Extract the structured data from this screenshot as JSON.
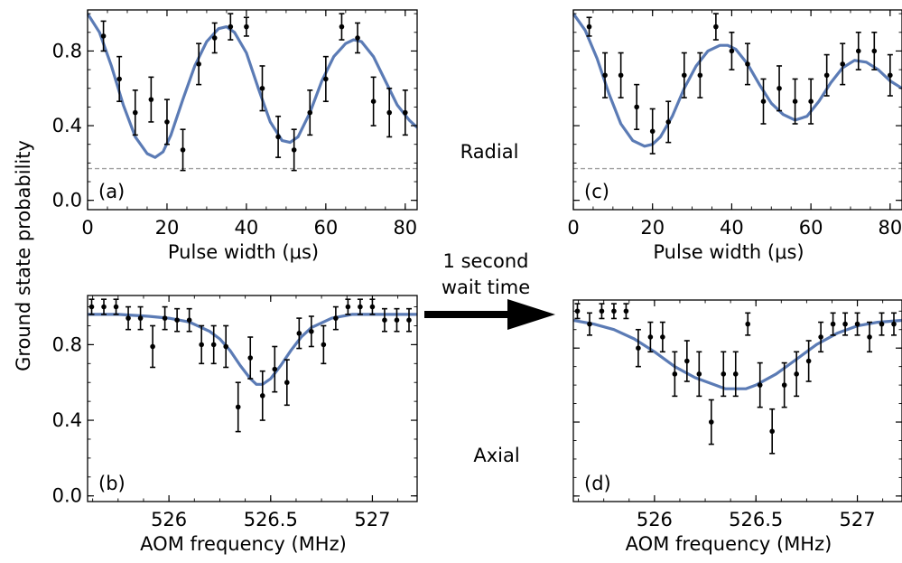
{
  "figure": {
    "shared_ylabel": "Ground state probability",
    "radial_label": "Radial",
    "axial_label": "Axial",
    "arrow_text": [
      "1 second",
      "wait time"
    ],
    "fit_color": "#5b7bb5",
    "data_color": "#000000",
    "baseline_color": "#a0a0a0"
  },
  "chart_data": [
    {
      "id": "a",
      "type": "scatter",
      "panel_label": "(a)",
      "xlabel": "Pulse width (μs)",
      "xlim": [
        0,
        83
      ],
      "ylim": [
        -0.05,
        1.02
      ],
      "xticks": [
        0,
        20,
        40,
        60,
        80
      ],
      "yticks": [
        0.0,
        0.4,
        0.8
      ],
      "xtick_labels": [
        "0",
        "20",
        "40",
        "60",
        "80"
      ],
      "ytick_labels": [
        "0.0",
        "0.4",
        "0.8"
      ],
      "baseline": 0.17,
      "points": [
        {
          "x": 4,
          "y": 0.88,
          "err": 0.08
        },
        {
          "x": 8,
          "y": 0.65,
          "err": 0.12
        },
        {
          "x": 12,
          "y": 0.47,
          "err": 0.12
        },
        {
          "x": 16,
          "y": 0.54,
          "err": 0.12
        },
        {
          "x": 20,
          "y": 0.42,
          "err": 0.12
        },
        {
          "x": 24,
          "y": 0.27,
          "err": 0.11
        },
        {
          "x": 28,
          "y": 0.73,
          "err": 0.11
        },
        {
          "x": 32,
          "y": 0.87,
          "err": 0.08
        },
        {
          "x": 36,
          "y": 0.93,
          "err": 0.07
        },
        {
          "x": 40,
          "y": 0.93,
          "err": 0.05
        },
        {
          "x": 44,
          "y": 0.6,
          "err": 0.12
        },
        {
          "x": 48,
          "y": 0.34,
          "err": 0.11
        },
        {
          "x": 52,
          "y": 0.27,
          "err": 0.11
        },
        {
          "x": 56,
          "y": 0.47,
          "err": 0.12
        },
        {
          "x": 60,
          "y": 0.65,
          "err": 0.12
        },
        {
          "x": 64,
          "y": 0.93,
          "err": 0.07
        },
        {
          "x": 68,
          "y": 0.87,
          "err": 0.08
        },
        {
          "x": 72,
          "y": 0.53,
          "err": 0.13
        },
        {
          "x": 76,
          "y": 0.47,
          "err": 0.13
        },
        {
          "x": 80,
          "y": 0.47,
          "err": 0.12
        }
      ],
      "fit": {
        "x": [
          0,
          3,
          6,
          9,
          12,
          15,
          17,
          19,
          21,
          24,
          27,
          30,
          33,
          35,
          37,
          40,
          43,
          46,
          49,
          51,
          53,
          56,
          59,
          62,
          65,
          67,
          69,
          72,
          75,
          78,
          81,
          83
        ],
        "y": [
          1.0,
          0.9,
          0.72,
          0.51,
          0.34,
          0.25,
          0.23,
          0.26,
          0.35,
          0.54,
          0.72,
          0.85,
          0.92,
          0.93,
          0.9,
          0.79,
          0.6,
          0.42,
          0.32,
          0.31,
          0.34,
          0.47,
          0.64,
          0.77,
          0.84,
          0.86,
          0.85,
          0.77,
          0.64,
          0.51,
          0.43,
          0.39
        ]
      }
    },
    {
      "id": "c",
      "type": "scatter",
      "panel_label": "(c)",
      "xlabel": "Pulse width (μs)",
      "xlim": [
        0,
        83
      ],
      "ylim": [
        -0.05,
        1.02
      ],
      "xticks": [
        0,
        20,
        40,
        60,
        80
      ],
      "yticks": [
        0.0,
        0.4,
        0.8
      ],
      "xtick_labels": [
        "0",
        "20",
        "40",
        "60",
        "80"
      ],
      "ytick_labels": [],
      "baseline": 0.17,
      "points": [
        {
          "x": 4,
          "y": 0.93,
          "err": 0.05
        },
        {
          "x": 8,
          "y": 0.67,
          "err": 0.12
        },
        {
          "x": 12,
          "y": 0.67,
          "err": 0.12
        },
        {
          "x": 16,
          "y": 0.5,
          "err": 0.12
        },
        {
          "x": 20,
          "y": 0.37,
          "err": 0.12
        },
        {
          "x": 24,
          "y": 0.42,
          "err": 0.11
        },
        {
          "x": 28,
          "y": 0.67,
          "err": 0.12
        },
        {
          "x": 32,
          "y": 0.67,
          "err": 0.12
        },
        {
          "x": 36,
          "y": 0.93,
          "err": 0.07
        },
        {
          "x": 40,
          "y": 0.8,
          "err": 0.1
        },
        {
          "x": 44,
          "y": 0.73,
          "err": 0.11
        },
        {
          "x": 48,
          "y": 0.53,
          "err": 0.12
        },
        {
          "x": 52,
          "y": 0.6,
          "err": 0.12
        },
        {
          "x": 56,
          "y": 0.53,
          "err": 0.12
        },
        {
          "x": 60,
          "y": 0.53,
          "err": 0.12
        },
        {
          "x": 64,
          "y": 0.67,
          "err": 0.11
        },
        {
          "x": 68,
          "y": 0.73,
          "err": 0.11
        },
        {
          "x": 72,
          "y": 0.8,
          "err": 0.1
        },
        {
          "x": 76,
          "y": 0.8,
          "err": 0.1
        },
        {
          "x": 80,
          "y": 0.67,
          "err": 0.11
        }
      ],
      "fit": {
        "x": [
          0,
          3,
          6,
          9,
          12,
          15,
          18,
          20,
          22,
          25,
          28,
          31,
          34,
          37,
          39,
          41,
          44,
          47,
          50,
          53,
          56,
          59,
          62,
          65,
          68,
          71,
          74,
          77,
          80,
          83
        ],
        "y": [
          1.0,
          0.91,
          0.76,
          0.57,
          0.41,
          0.32,
          0.29,
          0.3,
          0.34,
          0.45,
          0.6,
          0.72,
          0.8,
          0.83,
          0.83,
          0.81,
          0.73,
          0.62,
          0.52,
          0.46,
          0.43,
          0.45,
          0.53,
          0.63,
          0.71,
          0.75,
          0.74,
          0.7,
          0.64,
          0.6
        ]
      }
    },
    {
      "id": "b",
      "type": "scatter",
      "panel_label": "(b)",
      "xlabel": "AOM frequency (MHz)",
      "xlim": [
        525.6,
        527.22
      ],
      "ylim": [
        -0.03,
        1.06
      ],
      "xticks": [
        526,
        526.5,
        527
      ],
      "yticks": [
        0.0,
        0.4,
        0.8
      ],
      "xtick_labels": [
        "526",
        "526.5",
        "527"
      ],
      "ytick_labels": [
        "0.0",
        "0.4",
        "0.8"
      ],
      "points": [
        {
          "x": 525.62,
          "y": 1.0,
          "err": 0.04
        },
        {
          "x": 525.68,
          "y": 1.0,
          "err": 0.04
        },
        {
          "x": 525.74,
          "y": 1.0,
          "err": 0.04
        },
        {
          "x": 525.8,
          "y": 0.94,
          "err": 0.06
        },
        {
          "x": 525.86,
          "y": 0.94,
          "err": 0.06
        },
        {
          "x": 525.92,
          "y": 0.79,
          "err": 0.11
        },
        {
          "x": 525.98,
          "y": 0.94,
          "err": 0.06
        },
        {
          "x": 526.04,
          "y": 0.93,
          "err": 0.06
        },
        {
          "x": 526.1,
          "y": 0.93,
          "err": 0.06
        },
        {
          "x": 526.16,
          "y": 0.8,
          "err": 0.1
        },
        {
          "x": 526.22,
          "y": 0.8,
          "err": 0.1
        },
        {
          "x": 526.28,
          "y": 0.79,
          "err": 0.11
        },
        {
          "x": 526.34,
          "y": 0.47,
          "err": 0.13
        },
        {
          "x": 526.4,
          "y": 0.73,
          "err": 0.11
        },
        {
          "x": 526.46,
          "y": 0.53,
          "err": 0.13
        },
        {
          "x": 526.52,
          "y": 0.67,
          "err": 0.12
        },
        {
          "x": 526.58,
          "y": 0.6,
          "err": 0.12
        },
        {
          "x": 526.64,
          "y": 0.86,
          "err": 0.08
        },
        {
          "x": 526.7,
          "y": 0.87,
          "err": 0.08
        },
        {
          "x": 526.76,
          "y": 0.8,
          "err": 0.1
        },
        {
          "x": 526.82,
          "y": 0.94,
          "err": 0.06
        },
        {
          "x": 526.88,
          "y": 1.0,
          "err": 0.04
        },
        {
          "x": 526.94,
          "y": 1.0,
          "err": 0.04
        },
        {
          "x": 527.0,
          "y": 1.0,
          "err": 0.04
        },
        {
          "x": 527.06,
          "y": 0.93,
          "err": 0.06
        },
        {
          "x": 527.12,
          "y": 0.93,
          "err": 0.06
        },
        {
          "x": 527.18,
          "y": 0.93,
          "err": 0.06
        }
      ],
      "fit": {
        "x": [
          525.6,
          525.75,
          525.9,
          526.0,
          526.1,
          526.2,
          526.25,
          526.3,
          526.35,
          526.4,
          526.43,
          526.46,
          526.5,
          526.55,
          526.6,
          526.65,
          526.7,
          526.8,
          526.9,
          527.0,
          527.1,
          527.22
        ],
        "y": [
          0.96,
          0.96,
          0.95,
          0.94,
          0.92,
          0.87,
          0.83,
          0.77,
          0.69,
          0.62,
          0.59,
          0.59,
          0.62,
          0.69,
          0.77,
          0.84,
          0.89,
          0.94,
          0.96,
          0.96,
          0.96,
          0.96
        ]
      }
    },
    {
      "id": "d",
      "type": "scatter",
      "panel_label": "(d)",
      "xlabel": "AOM frequency (MHz)",
      "xlim": [
        525.6,
        527.22
      ],
      "ylim": [
        -0.03,
        1.06
      ],
      "xticks": [
        526,
        526.5,
        527
      ],
      "yticks": [
        0.0,
        0.4,
        0.8
      ],
      "xtick_labels": [
        "526",
        "526.5",
        "527"
      ],
      "ytick_labels": [],
      "points": [
        {
          "x": 525.62,
          "y": 1.0,
          "err": 0.04
        },
        {
          "x": 525.68,
          "y": 0.93,
          "err": 0.06
        },
        {
          "x": 525.74,
          "y": 1.0,
          "err": 0.04
        },
        {
          "x": 525.8,
          "y": 1.0,
          "err": 0.04
        },
        {
          "x": 525.86,
          "y": 1.0,
          "err": 0.04
        },
        {
          "x": 525.92,
          "y": 0.8,
          "err": 0.1
        },
        {
          "x": 525.98,
          "y": 0.86,
          "err": 0.08
        },
        {
          "x": 526.04,
          "y": 0.86,
          "err": 0.08
        },
        {
          "x": 526.1,
          "y": 0.66,
          "err": 0.12
        },
        {
          "x": 526.16,
          "y": 0.73,
          "err": 0.11
        },
        {
          "x": 526.22,
          "y": 0.66,
          "err": 0.12
        },
        {
          "x": 526.28,
          "y": 0.4,
          "err": 0.12
        },
        {
          "x": 526.34,
          "y": 0.66,
          "err": 0.12
        },
        {
          "x": 526.4,
          "y": 0.66,
          "err": 0.12
        },
        {
          "x": 526.46,
          "y": 0.93,
          "err": 0.06
        },
        {
          "x": 526.52,
          "y": 0.6,
          "err": 0.12
        },
        {
          "x": 526.58,
          "y": 0.35,
          "err": 0.12
        },
        {
          "x": 526.64,
          "y": 0.6,
          "err": 0.12
        },
        {
          "x": 526.7,
          "y": 0.66,
          "err": 0.12
        },
        {
          "x": 526.76,
          "y": 0.73,
          "err": 0.11
        },
        {
          "x": 526.82,
          "y": 0.86,
          "err": 0.08
        },
        {
          "x": 526.88,
          "y": 0.93,
          "err": 0.06
        },
        {
          "x": 526.94,
          "y": 0.93,
          "err": 0.06
        },
        {
          "x": 527.0,
          "y": 0.93,
          "err": 0.06
        },
        {
          "x": 527.06,
          "y": 0.86,
          "err": 0.08
        },
        {
          "x": 527.12,
          "y": 0.93,
          "err": 0.06
        },
        {
          "x": 527.18,
          "y": 0.93,
          "err": 0.06
        }
      ],
      "fit": {
        "x": [
          525.6,
          525.7,
          525.8,
          525.9,
          526.0,
          526.1,
          526.2,
          526.3,
          526.35,
          526.4,
          526.45,
          526.5,
          526.6,
          526.7,
          526.8,
          526.9,
          527.0,
          527.1,
          527.22
        ],
        "y": [
          0.95,
          0.93,
          0.9,
          0.85,
          0.78,
          0.7,
          0.64,
          0.6,
          0.58,
          0.58,
          0.58,
          0.6,
          0.66,
          0.74,
          0.82,
          0.88,
          0.92,
          0.94,
          0.95
        ]
      }
    }
  ]
}
